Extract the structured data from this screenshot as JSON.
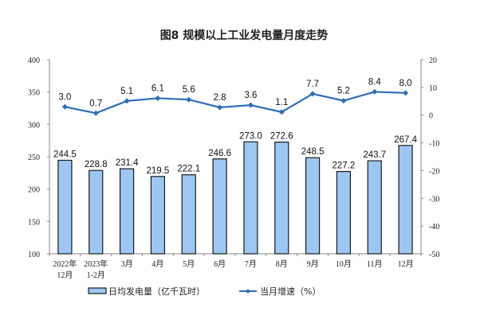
{
  "chart_data": {
    "type": "bar+line",
    "title": "图8  规模以上工业发电量月度走势",
    "categories": [
      [
        "2022年",
        "12月"
      ],
      [
        "2023年",
        "1-2月"
      ],
      [
        "3月"
      ],
      [
        "4月"
      ],
      [
        "5月"
      ],
      [
        "6月"
      ],
      [
        "7月"
      ],
      [
        "8月"
      ],
      [
        "9月"
      ],
      [
        "10月"
      ],
      [
        "11月"
      ],
      [
        "12月"
      ]
    ],
    "series": [
      {
        "name": "日均发电量（亿千瓦时）",
        "type": "bar",
        "axis": "left",
        "color": "#9DC7F2",
        "border": "#1A1A1A",
        "values": [
          244.5,
          228.8,
          231.4,
          219.5,
          222.1,
          246.6,
          273.0,
          272.6,
          248.5,
          227.2,
          243.7,
          267.4
        ],
        "labels": [
          "244.5",
          "228.8",
          "231.4",
          "219.5",
          "222.1",
          "246.6",
          "273.0",
          "272.6",
          "248.5",
          "227.2",
          "243.7",
          "267.4"
        ]
      },
      {
        "name": "当月增速（%）",
        "type": "line",
        "axis": "right",
        "color": "#2E6DB4",
        "values": [
          3.0,
          0.7,
          5.1,
          6.1,
          5.6,
          2.8,
          3.6,
          1.1,
          7.7,
          5.2,
          8.4,
          8.0
        ],
        "labels": [
          "3.0",
          "0.7",
          "5.1",
          "6.1",
          "5.6",
          "2.8",
          "3.6",
          "1.1",
          "7.7",
          "5.2",
          "8.4",
          "8.0"
        ]
      }
    ],
    "y_left": {
      "range": [
        100,
        400
      ],
      "ticks": [
        "100",
        "150",
        "200",
        "250",
        "300",
        "350",
        "400"
      ]
    },
    "y_right": {
      "range": [
        -50,
        20
      ],
      "ticks": [
        "-50",
        "-40",
        "-30",
        "-20",
        "-10",
        "0",
        "10",
        "20"
      ]
    },
    "legend": "bottom",
    "grid": false
  }
}
